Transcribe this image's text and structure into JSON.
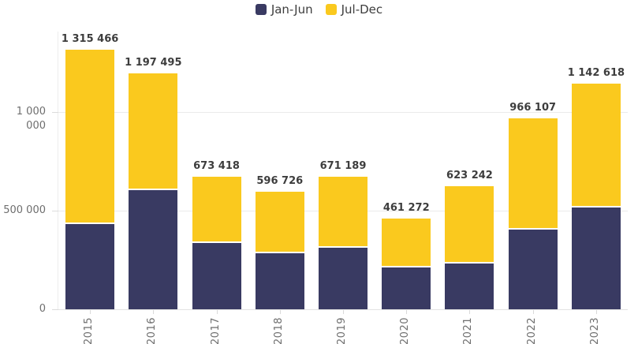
{
  "chart_data": {
    "type": "bar",
    "stacked": true,
    "categories": [
      "2015",
      "2016",
      "2017",
      "2018",
      "2019",
      "2020",
      "2021",
      "2022",
      "2023"
    ],
    "series": [
      {
        "name": "Jan-Jun",
        "color": "#393a62",
        "values": [
          433000,
          605000,
          337000,
          285000,
          314000,
          212000,
          234000,
          404000,
          515000
        ]
      },
      {
        "name": "Jul-Dec",
        "color": "#fac91e",
        "values": [
          882466,
          592495,
          336418,
          311726,
          357189,
          249272,
          389242,
          562107,
          627618
        ]
      }
    ],
    "totals": [
      1315466,
      1197495,
      673418,
      596726,
      671189,
      461272,
      623242,
      966107,
      1142618
    ],
    "total_labels": [
      "1 315 466",
      "1 197 495",
      "673 418",
      "596 726",
      "671 189",
      "461 272",
      "623 242",
      "966 107",
      "1 142 618"
    ],
    "title": "",
    "xlabel": "",
    "ylabel": "",
    "ylim": [
      0,
      1408000
    ],
    "grid": "horizontal",
    "legend_position": "top-center"
  },
  "y_axis": {
    "tick_labels": [
      "1 000 000",
      "500 000",
      "0"
    ],
    "tick_values": [
      1000000,
      500000,
      0
    ]
  },
  "colors": {
    "background": "#ffffff",
    "grid_line": "#ebebeb",
    "axis_line": "#e3e3e3",
    "tick_mark": "#d9d9d9",
    "axis_text": "#6e6e6e",
    "label_text": "#3d3d3d"
  }
}
